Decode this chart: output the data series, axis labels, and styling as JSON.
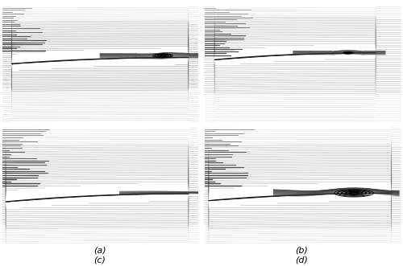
{
  "figure_width": 5.0,
  "figure_height": 3.31,
  "dpi": 100,
  "bg_color": "#ffffff",
  "panel_labels": [
    "(a)",
    "(b)",
    "(c)",
    "(d)"
  ],
  "label_fontsize": 8,
  "streamline_color_light": "#aaaaaa",
  "streamline_color_dark": "#333333",
  "airfoil_color": "#111111",
  "n_streamlines": 50
}
